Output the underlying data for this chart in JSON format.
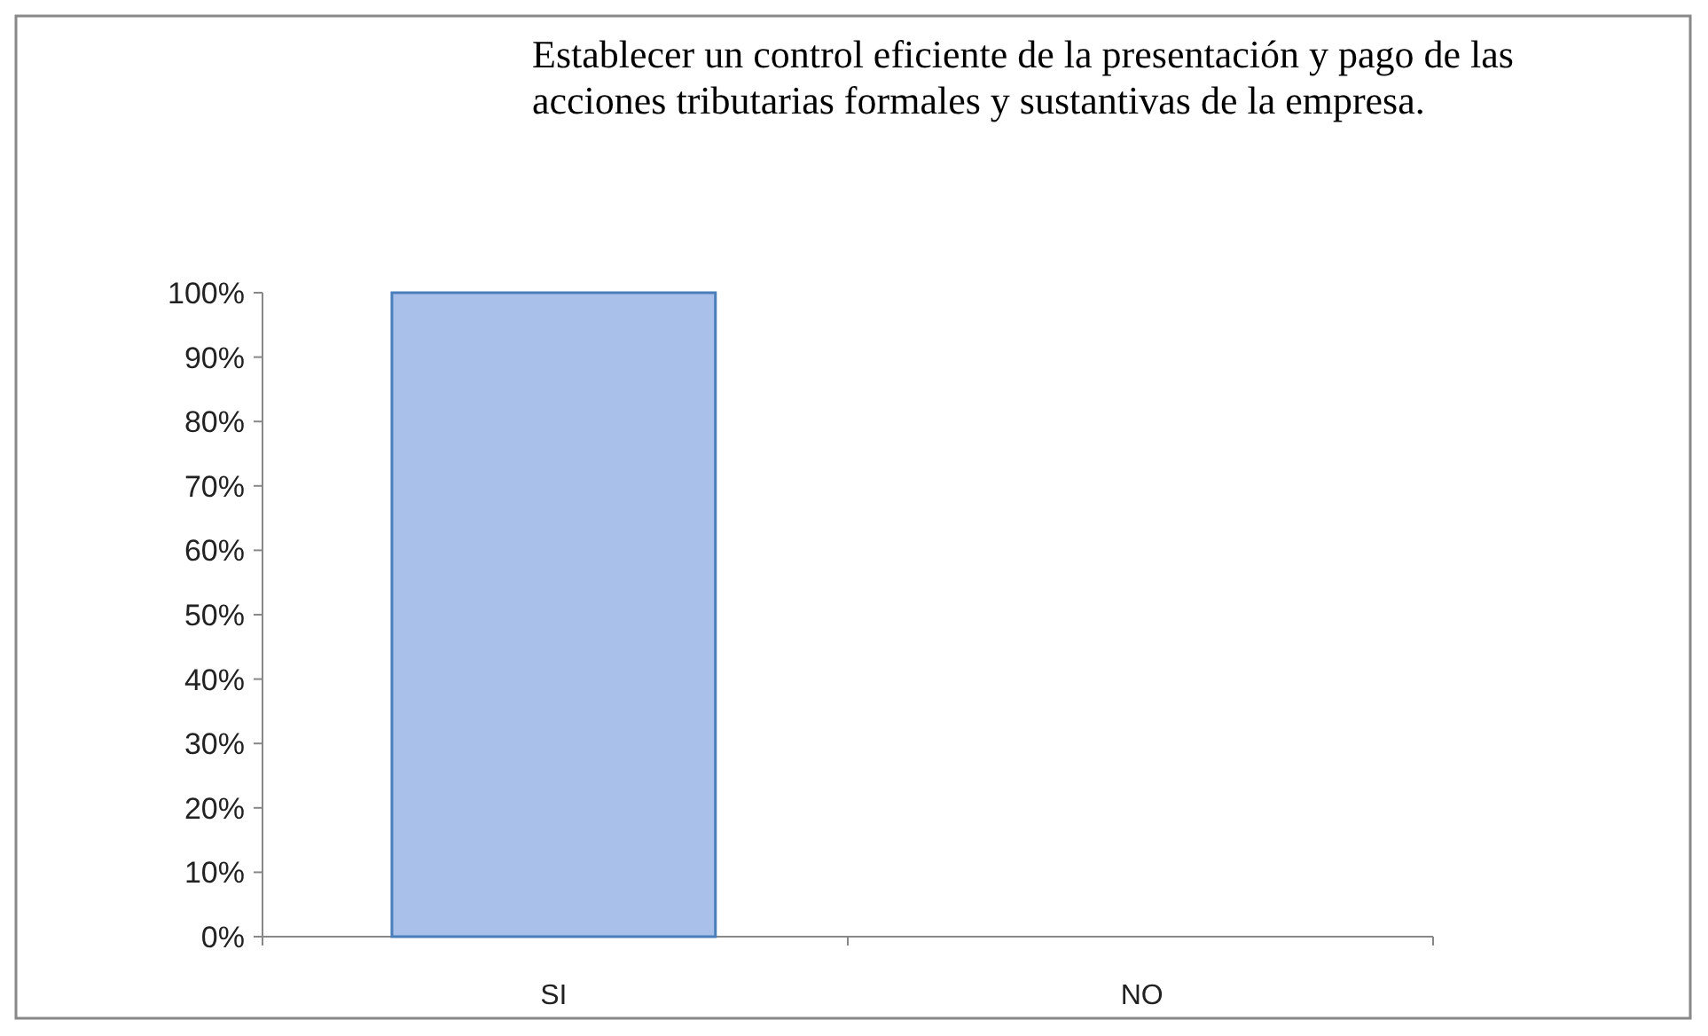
{
  "chart_data": {
    "type": "bar",
    "title": "Establecer un control eficiente de la presentación y pago de las acciones tributarias formales y sustantivas de la empresa.",
    "categories": [
      "SI",
      "NO"
    ],
    "values": [
      100,
      0
    ],
    "colors": [
      "#a9c0ea",
      "#6b82ab"
    ],
    "ylim": [
      0,
      100
    ],
    "yticks": [
      {
        "value": 0,
        "label": "0%"
      },
      {
        "value": 10,
        "label": "10%"
      },
      {
        "value": 20,
        "label": "20%"
      },
      {
        "value": 30,
        "label": "30%"
      },
      {
        "value": 40,
        "label": "40%"
      },
      {
        "value": 50,
        "label": "50%"
      },
      {
        "value": 60,
        "label": "60%"
      },
      {
        "value": 70,
        "label": "70%"
      },
      {
        "value": 80,
        "label": "80%"
      },
      {
        "value": 90,
        "label": "90%"
      },
      {
        "value": 100,
        "label": "100%"
      }
    ],
    "grid": false
  }
}
